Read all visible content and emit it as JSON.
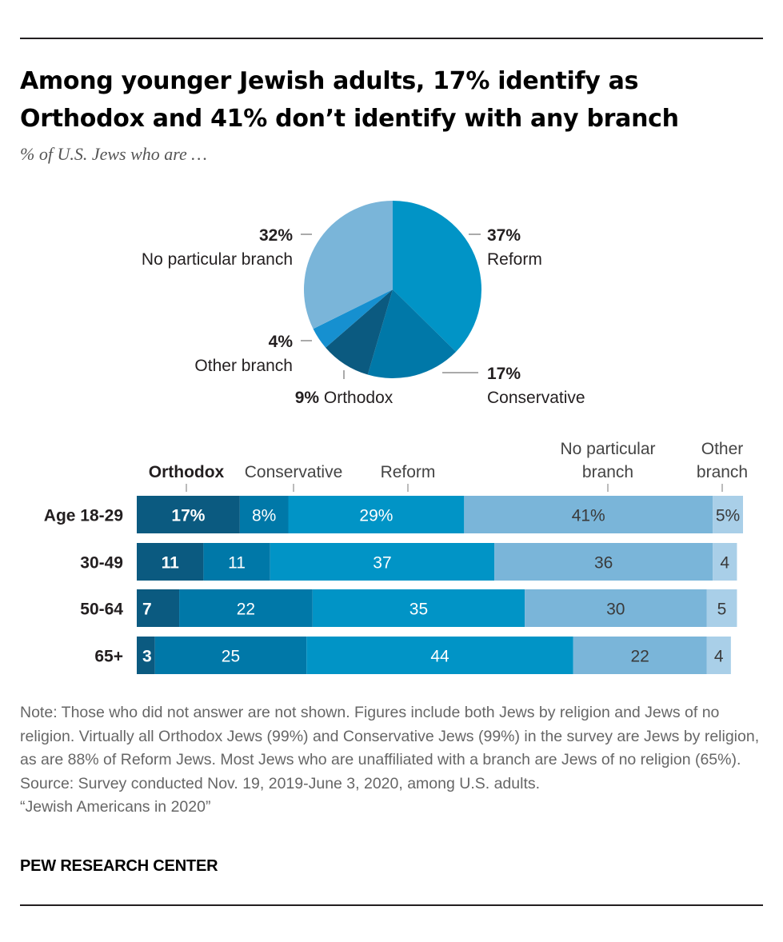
{
  "title": "Among younger Jewish adults, 17% identify as Orthodox and 41% don’t identify with any branch",
  "subtitle": "% of U.S. Jews who are …",
  "colors": {
    "Orthodox": "#0b5a80",
    "Conservative": "#0078a8",
    "Reform": "#0194c6",
    "No particular branch": "#7ab5d9",
    "Other branch": "#a9cfe8",
    "pie_other": "#1690d0"
  },
  "chart_data": [
    {
      "type": "pie",
      "slices": [
        {
          "name": "Reform",
          "value": 37,
          "value_label": "37%",
          "label": "Reform"
        },
        {
          "name": "Conservative",
          "value": 17,
          "value_label": "17%",
          "label": "Conservative"
        },
        {
          "name": "Orthodox",
          "value": 9,
          "value_label": "9%",
          "label": "Orthodox"
        },
        {
          "name": "Other branch",
          "value": 4,
          "value_label": "4%",
          "label": "Other branch"
        },
        {
          "name": "No particular branch",
          "value": 32,
          "value_label": "32%",
          "label": "No particular branch"
        }
      ]
    },
    {
      "type": "bar",
      "orientation": "horizontal",
      "stacked": true,
      "categories": [
        "Age 18-29",
        "30-49",
        "50-64",
        "65+"
      ],
      "series": [
        {
          "name": "Orthodox",
          "label": "Orthodox",
          "values": [
            17,
            11,
            7,
            3
          ],
          "value_labels": [
            "17%",
            "11",
            "7",
            "3"
          ]
        },
        {
          "name": "Conservative",
          "label": "Conservative",
          "values": [
            8,
            11,
            22,
            25
          ],
          "value_labels": [
            "8%",
            "11",
            "22",
            "25"
          ]
        },
        {
          "name": "Reform",
          "label": "Reform",
          "values": [
            29,
            37,
            35,
            44
          ],
          "value_labels": [
            "29%",
            "37",
            "35",
            "44"
          ]
        },
        {
          "name": "No particular branch",
          "label": [
            "No particular",
            "branch"
          ],
          "values": [
            41,
            36,
            30,
            22
          ],
          "value_labels": [
            "41%",
            "36",
            "30",
            "22"
          ]
        },
        {
          "name": "Other branch",
          "label": [
            "Other",
            "branch"
          ],
          "values": [
            5,
            4,
            5,
            4
          ],
          "value_labels": [
            "5%",
            "4",
            "5",
            "4"
          ]
        }
      ]
    }
  ],
  "notes": [
    "Note: Those who did not answer are not shown. Figures include both Jews by religion and Jews of no religion. Virtually all Orthodox Jews (99%) and Conservative Jews (99%) in the survey are Jews by religion, as are 88% of Reform Jews. Most Jews who are unaffiliated with a branch are Jews of no religion (65%).",
    "Source: Survey conducted Nov. 19, 2019-June 3, 2020, among U.S. adults.",
    "“Jewish Americans in 2020”"
  ],
  "brand": "PEW RESEARCH CENTER"
}
